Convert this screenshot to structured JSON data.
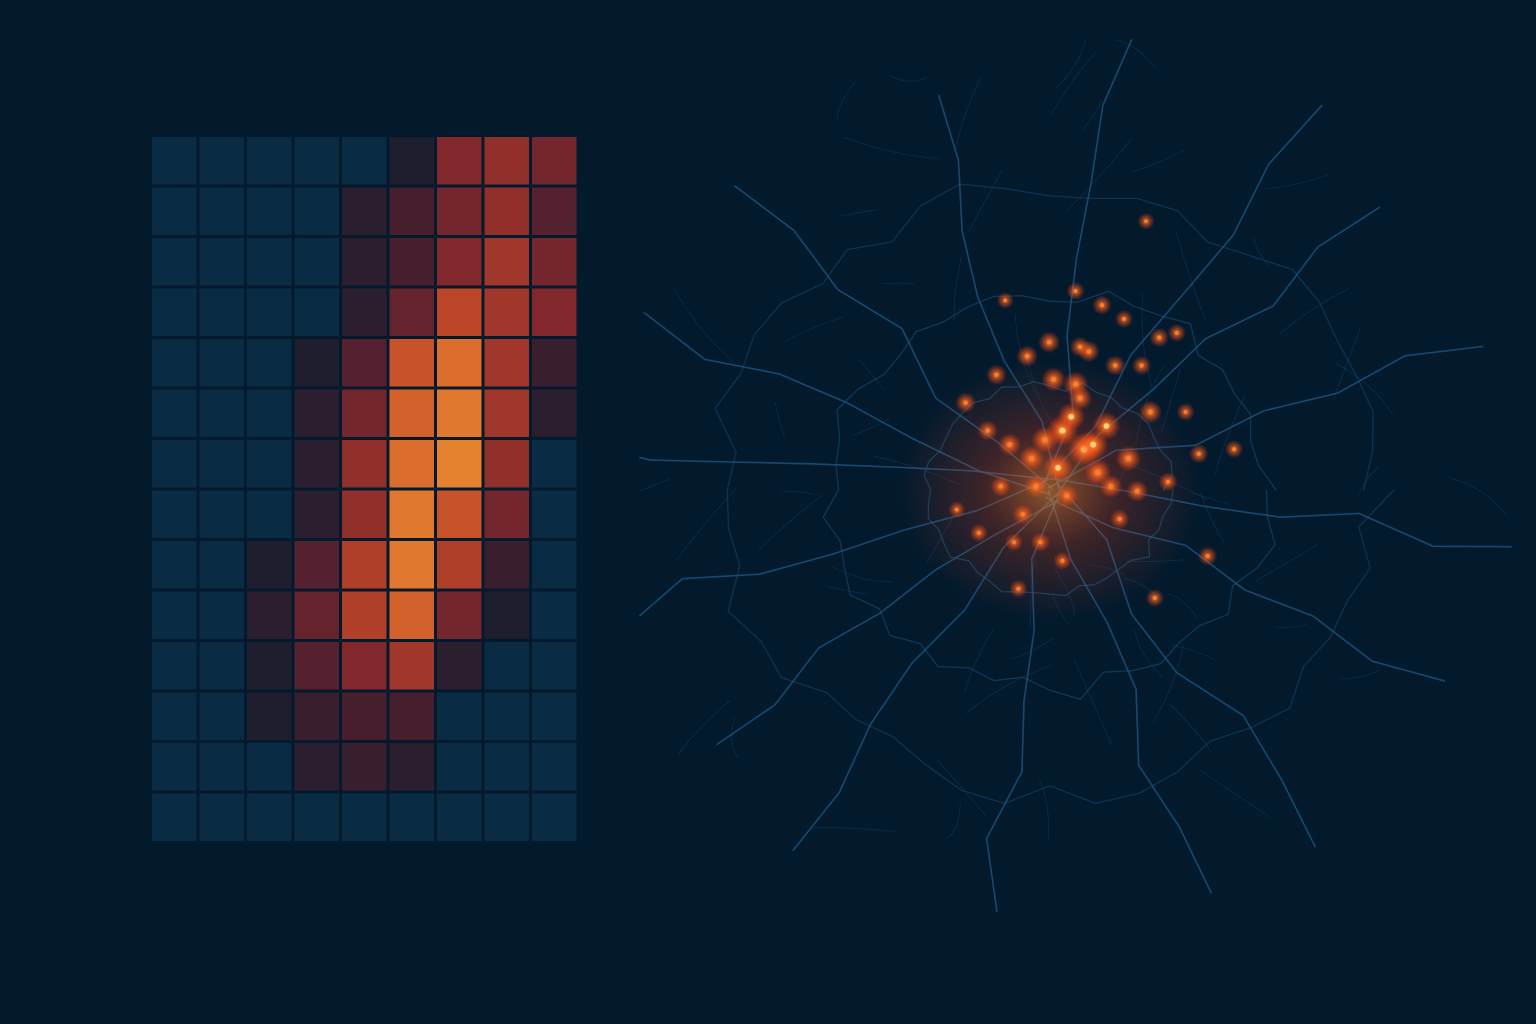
{
  "colors": {
    "background": "#031a2d",
    "cell_empty": "#0a2b44",
    "road": "#1e5a85",
    "hotspot": "#ff5a1f",
    "hotspot_core": "#ffb347"
  },
  "chart_data": [
    {
      "type": "heatmap",
      "title": "",
      "xlabel": "",
      "ylabel": "",
      "columns": 9,
      "rows": 14,
      "value_range": [
        0,
        1
      ],
      "values": [
        [
          0.0,
          0.0,
          0.0,
          0.0,
          0.0,
          0.15,
          0.5,
          0.55,
          0.45
        ],
        [
          0.0,
          0.0,
          0.0,
          0.0,
          0.2,
          0.3,
          0.45,
          0.55,
          0.35
        ],
        [
          0.0,
          0.0,
          0.0,
          0.0,
          0.2,
          0.3,
          0.5,
          0.6,
          0.45
        ],
        [
          0.0,
          0.0,
          0.0,
          0.0,
          0.2,
          0.4,
          0.7,
          0.6,
          0.5
        ],
        [
          0.0,
          0.0,
          0.0,
          0.15,
          0.35,
          0.75,
          0.85,
          0.6,
          0.25
        ],
        [
          0.0,
          0.0,
          0.0,
          0.2,
          0.45,
          0.8,
          0.9,
          0.6,
          0.2
        ],
        [
          0.0,
          0.0,
          0.0,
          0.2,
          0.55,
          0.85,
          0.95,
          0.55,
          0.0
        ],
        [
          0.0,
          0.0,
          0.0,
          0.2,
          0.55,
          0.9,
          0.75,
          0.45,
          0.0
        ],
        [
          0.0,
          0.0,
          0.15,
          0.35,
          0.65,
          0.9,
          0.65,
          0.25,
          0.0
        ],
        [
          0.0,
          0.0,
          0.2,
          0.4,
          0.65,
          0.8,
          0.45,
          0.15,
          0.0
        ],
        [
          0.0,
          0.0,
          0.15,
          0.35,
          0.5,
          0.6,
          0.2,
          0.0,
          0.0
        ],
        [
          0.0,
          0.0,
          0.15,
          0.25,
          0.3,
          0.3,
          0.0,
          0.0,
          0.0
        ],
        [
          0.0,
          0.0,
          0.0,
          0.2,
          0.25,
          0.2,
          0.0,
          0.0,
          0.0
        ],
        [
          0.0,
          0.0,
          0.0,
          0.0,
          0.0,
          0.0,
          0.0,
          0.0,
          0.0
        ]
      ]
    },
    {
      "type": "scatter",
      "title": "",
      "xlabel": "",
      "ylabel": "",
      "grid": false,
      "xlim": [
        0,
        100
      ],
      "ylim": [
        0,
        100
      ],
      "series": [
        {
          "x": [
            50.5,
            48.0,
            51.5,
            47.5,
            53.0,
            49.0,
            46.0,
            52.0,
            44.5,
            55.5,
            49.5,
            47.0,
            50.0,
            42.0,
            53.5,
            45.0,
            58.0,
            48.5,
            56.5,
            51.0,
            44.0,
            46.5,
            54.0,
            50.0,
            37.0,
            40.5,
            39.5,
            41.0,
            43.5,
            57.0,
            59.0,
            52.5,
            45.5,
            54.5,
            63.5,
            60.0,
            64.5,
            49.5,
            43.0,
            62.0,
            58.5,
            38.5,
            42.5,
            48.0,
            61.0,
            55.0,
            67.5,
            36.0,
            57.5,
            41.5
          ],
          "y": [
            56.0,
            58.0,
            56.5,
            54.0,
            58.5,
            59.5,
            57.0,
            53.5,
            55.0,
            55.0,
            63.0,
            63.5,
            61.5,
            56.5,
            52.0,
            52.0,
            60.0,
            51.0,
            51.5,
            66.5,
            66.0,
            67.5,
            65.0,
            67.0,
            61.0,
            64.0,
            58.0,
            52.0,
            49.0,
            65.0,
            68.0,
            71.5,
            46.0,
            48.5,
            55.5,
            52.5,
            44.5,
            73.0,
            41.0,
            60.0,
            40.0,
            47.0,
            46.0,
            44.0,
            68.5,
            70.0,
            56.0,
            49.5,
            80.5,
            72.0
          ],
          "weight": [
            1.0,
            0.9,
            0.85,
            0.8,
            0.75,
            0.75,
            0.7,
            0.7,
            0.65,
            0.65,
            0.65,
            0.6,
            0.6,
            0.55,
            0.55,
            0.55,
            0.55,
            0.5,
            0.5,
            0.5,
            0.5,
            0.5,
            0.45,
            0.45,
            0.45,
            0.45,
            0.45,
            0.45,
            0.45,
            0.4,
            0.4,
            0.4,
            0.4,
            0.4,
            0.4,
            0.4,
            0.4,
            0.35,
            0.35,
            0.35,
            0.35,
            0.35,
            0.35,
            0.35,
            0.35,
            0.35,
            0.35,
            0.3,
            0.3,
            0.3
          ]
        }
      ]
    }
  ]
}
